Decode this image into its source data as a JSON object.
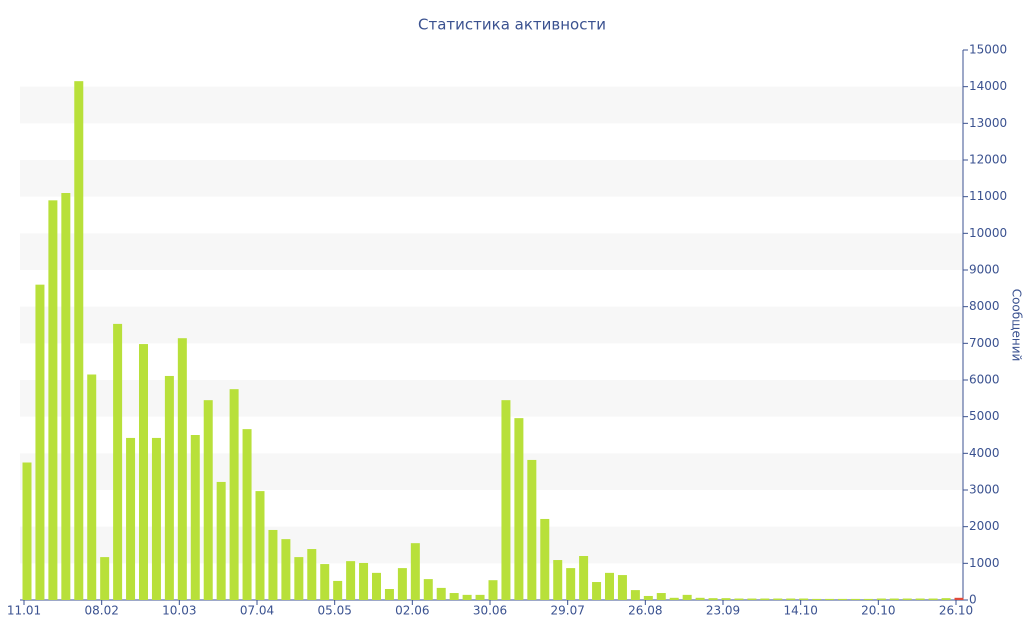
{
  "chart_data": {
    "type": "bar",
    "title": "Статистика активности",
    "y_label": "Сообщений",
    "categories": [
      "11.01",
      null,
      null,
      null,
      null,
      null,
      "08.02",
      null,
      null,
      null,
      null,
      null,
      "10.03",
      null,
      null,
      null,
      null,
      null,
      "07.04",
      null,
      null,
      null,
      null,
      null,
      "05.05",
      null,
      null,
      null,
      null,
      null,
      "02.06",
      null,
      null,
      null,
      null,
      null,
      "30.06",
      null,
      null,
      null,
      null,
      null,
      "29.07",
      null,
      null,
      null,
      null,
      null,
      "26.08",
      null,
      null,
      null,
      null,
      null,
      "23.09",
      null,
      null,
      null,
      null,
      null,
      "14.10",
      null,
      null,
      null,
      null,
      null,
      "20.10",
      null,
      null,
      null,
      null,
      null,
      "26.10"
    ],
    "values": [
      3750,
      8600,
      10900,
      11100,
      14150,
      6150,
      1170,
      7530,
      4420,
      6980,
      4420,
      6110,
      7140,
      4500,
      5450,
      3220,
      5750,
      4660,
      2970,
      1910,
      1660,
      1170,
      1390,
      980,
      520,
      1060,
      1010,
      740,
      300,
      870,
      1550,
      570,
      330,
      190,
      140,
      140,
      540,
      5450,
      4960,
      3820,
      2210,
      1090,
      870,
      1200,
      490,
      740,
      680,
      270,
      110,
      190,
      60,
      140,
      60,
      50,
      50,
      40,
      40,
      40,
      40,
      40,
      40,
      30,
      30,
      30,
      30,
      30,
      40,
      40,
      40,
      40,
      40,
      50,
      60
    ],
    "color": "#b8e03a",
    "last_bar_color": "#e04a3a",
    "ylim": [
      0,
      15000
    ],
    "yticks": [
      0,
      1000,
      2000,
      3000,
      4000,
      5000,
      6000,
      7000,
      8000,
      9000,
      10000,
      11000,
      12000,
      13000,
      14000,
      15000
    ],
    "y_axis_side": "right",
    "grid_bands": true
  }
}
